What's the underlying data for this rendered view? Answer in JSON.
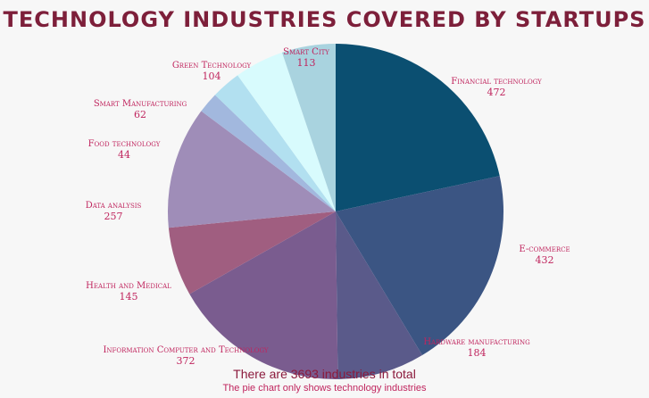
{
  "chart_data": {
    "type": "pie",
    "title": "TECHNOLOGY INDUSTRIES COVERED BY STARTUPS",
    "categories": [
      "Financial technology",
      "E-commerce",
      "Hardware manufacturing",
      "Information Computer and Technology",
      "Health and Medical",
      "Data analysis",
      "Food technology",
      "Smart Manufacturing",
      "Green Technology",
      "Smart City"
    ],
    "values": [
      472,
      432,
      184,
      372,
      145,
      257,
      44,
      62,
      104,
      113
    ],
    "colors": [
      "#0b4f71",
      "#3b5583",
      "#5a5a8a",
      "#7a5c8f",
      "#a05e80",
      "#9f8db8",
      "#a2b8de",
      "#b2e0f0",
      "#d8fbfd",
      "#a9d3df",
      "#8aa8bd",
      "#6b7d99"
    ],
    "legend": "none"
  },
  "footer": {
    "main": "There are 3693 industries in total",
    "sub": "The pie chart only shows technology industries"
  }
}
